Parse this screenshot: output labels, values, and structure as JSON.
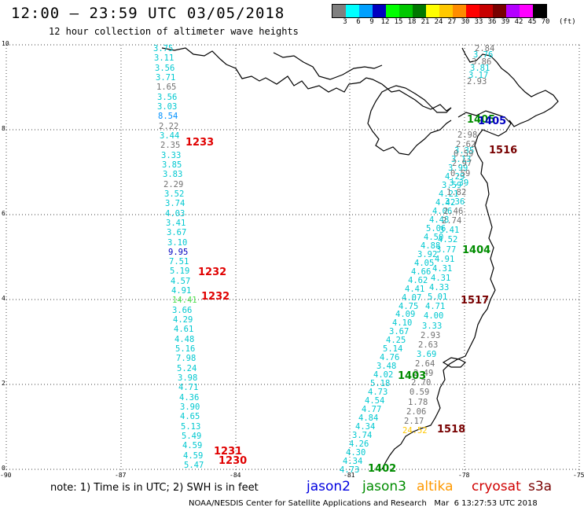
{
  "header": {
    "title": "12:00 – 23:59 UTC 03/05/2018",
    "subtitle": "12 hour collection of altimeter wave heights"
  },
  "colorbar": {
    "unit": "(ft)",
    "labels": [
      "3",
      "6",
      "9",
      "12",
      "15",
      "18",
      "21",
      "24",
      "27",
      "30",
      "33",
      "36",
      "39",
      "42",
      "45",
      "70"
    ],
    "colors": [
      "#808080",
      "#00ffff",
      "#00a0ff",
      "#0000c0",
      "#00ff00",
      "#00c800",
      "#007800",
      "#ffff00",
      "#ffc800",
      "#ff8c00",
      "#ff0000",
      "#c80000",
      "#780000",
      "#b400ff",
      "#ff00ff",
      "#000000"
    ]
  },
  "axes": {
    "y_ticks": [
      "10",
      "8",
      "6",
      "4",
      "2",
      "0"
    ],
    "x_ticks": [
      "-90",
      "-87",
      "-84",
      "-81",
      "-78",
      "-75"
    ]
  },
  "map": {
    "tracks": [
      {
        "id": "west",
        "values": [
          {
            "v": "3.75",
            "c": "#00c8d0"
          },
          {
            "v": "3.11",
            "c": "#00c8d0"
          },
          {
            "v": "3.56",
            "c": "#00c8d0"
          },
          {
            "v": "3.71",
            "c": "#00c8d0"
          },
          {
            "v": "1.65",
            "c": "#707070"
          },
          {
            "v": "3.56",
            "c": "#00c8d0"
          },
          {
            "v": "3.03",
            "c": "#00c8d0"
          },
          {
            "v": "8.54",
            "c": "#0090ff"
          },
          {
            "v": "2.22",
            "c": "#707070"
          },
          {
            "v": "3.44",
            "c": "#00c8d0"
          },
          {
            "v": "2.35",
            "c": "#707070"
          },
          {
            "v": "3.33",
            "c": "#00c8d0"
          },
          {
            "v": "3.85",
            "c": "#00c8d0"
          },
          {
            "v": "3.83",
            "c": "#00c8d0"
          },
          {
            "v": "2.29",
            "c": "#707070"
          },
          {
            "v": "3.52",
            "c": "#00c8d0"
          },
          {
            "v": "3.74",
            "c": "#00c8d0"
          },
          {
            "v": "4.03",
            "c": "#00c8d0"
          },
          {
            "v": "3.41",
            "c": "#00c8d0"
          },
          {
            "v": "3.67",
            "c": "#00c8d0"
          },
          {
            "v": "3.10",
            "c": "#00c8d0"
          },
          {
            "v": "9.95",
            "c": "#0000c0"
          },
          {
            "v": "7.51",
            "c": "#00c8d0"
          },
          {
            "v": "5.19",
            "c": "#00c8d0"
          },
          {
            "v": "4.57",
            "c": "#00c8d0"
          },
          {
            "v": "4.91",
            "c": "#00c8d0"
          },
          {
            "v": "14.41",
            "c": "#50e050"
          },
          {
            "v": "3.66",
            "c": "#00c8d0"
          },
          {
            "v": "4.29",
            "c": "#00c8d0"
          },
          {
            "v": "4.61",
            "c": "#00c8d0"
          },
          {
            "v": "4.48",
            "c": "#00c8d0"
          },
          {
            "v": "5.16",
            "c": "#00c8d0"
          },
          {
            "v": "7.98",
            "c": "#00c8d0"
          },
          {
            "v": "5.24",
            "c": "#00c8d0"
          },
          {
            "v": "3.98",
            "c": "#00c8d0"
          },
          {
            "v": "4.71",
            "c": "#00c8d0"
          },
          {
            "v": "4.36",
            "c": "#00c8d0"
          },
          {
            "v": "3.90",
            "c": "#00c8d0"
          },
          {
            "v": "4.65",
            "c": "#00c8d0"
          },
          {
            "v": "5.13",
            "c": "#00c8d0"
          },
          {
            "v": "5.49",
            "c": "#00c8d0"
          },
          {
            "v": "4.59",
            "c": "#00c8d0"
          },
          {
            "v": "4.59",
            "c": "#00c8d0"
          },
          {
            "v": "5.47",
            "c": "#00c8d0"
          }
        ]
      },
      {
        "id": "mid",
        "values": [
          {
            "v": "3.35",
            "c": "#00c8d0"
          },
          {
            "v": "3.13",
            "c": "#00c8d0"
          },
          {
            "v": "3.99",
            "c": "#00c8d0"
          },
          {
            "v": "4.29",
            "c": "#00c8d0"
          },
          {
            "v": "3.59",
            "c": "#00c8d0"
          },
          {
            "v": "4.21",
            "c": "#00c8d0"
          },
          {
            "v": "4.42",
            "c": "#00c8d0"
          },
          {
            "v": "4.06",
            "c": "#00c8d0"
          },
          {
            "v": "4.48",
            "c": "#00c8d0"
          },
          {
            "v": "5.06",
            "c": "#00c8d0"
          },
          {
            "v": "4.50",
            "c": "#00c8d0"
          },
          {
            "v": "4.88",
            "c": "#00c8d0"
          },
          {
            "v": "3.92",
            "c": "#00c8d0"
          },
          {
            "v": "4.05",
            "c": "#00c8d0"
          },
          {
            "v": "4.66",
            "c": "#00c8d0"
          },
          {
            "v": "4.62",
            "c": "#00c8d0"
          },
          {
            "v": "4.41",
            "c": "#00c8d0"
          },
          {
            "v": "4.07",
            "c": "#00c8d0"
          },
          {
            "v": "4.75",
            "c": "#00c8d0"
          },
          {
            "v": "4.09",
            "c": "#00c8d0"
          },
          {
            "v": "4.10",
            "c": "#00c8d0"
          },
          {
            "v": "3.67",
            "c": "#00c8d0"
          },
          {
            "v": "4.25",
            "c": "#00c8d0"
          },
          {
            "v": "5.14",
            "c": "#00c8d0"
          },
          {
            "v": "4.76",
            "c": "#00c8d0"
          },
          {
            "v": "3.48",
            "c": "#00c8d0"
          },
          {
            "v": "4.02",
            "c": "#00c8d0"
          },
          {
            "v": "5.18",
            "c": "#00c8d0"
          },
          {
            "v": "4.73",
            "c": "#00c8d0"
          },
          {
            "v": "4.54",
            "c": "#00c8d0"
          },
          {
            "v": "4.77",
            "c": "#00c8d0"
          },
          {
            "v": "4.84",
            "c": "#00c8d0"
          },
          {
            "v": "4.34",
            "c": "#00c8d0"
          },
          {
            "v": "3.74",
            "c": "#00c8d0"
          },
          {
            "v": "4.26",
            "c": "#00c8d0"
          },
          {
            "v": "4.30",
            "c": "#00c8d0"
          },
          {
            "v": "4.34",
            "c": "#00c8d0"
          },
          {
            "v": "4.73",
            "c": "#00c8d0"
          }
        ]
      },
      {
        "id": "east",
        "values": [
          {
            "v": "2.98",
            "c": "#707070"
          },
          {
            "v": "2.62",
            "c": "#707070"
          },
          {
            "v": "0.59",
            "c": "#707070"
          },
          {
            "v": "2.97",
            "c": "#707070"
          },
          {
            "v": "0.59",
            "c": "#707070"
          },
          {
            "v": "3.39",
            "c": "#00c8d0"
          },
          {
            "v": "1.82",
            "c": "#707070"
          },
          {
            "v": "3.36",
            "c": "#00c8d0"
          },
          {
            "v": "2.46",
            "c": "#707070"
          },
          {
            "v": "2.74",
            "c": "#707070"
          },
          {
            "v": "3.41",
            "c": "#00c8d0"
          },
          {
            "v": "4.52",
            "c": "#00c8d0"
          },
          {
            "v": "3.77",
            "c": "#00c8d0"
          },
          {
            "v": "4.91",
            "c": "#00c8d0"
          },
          {
            "v": "4.31",
            "c": "#00c8d0"
          },
          {
            "v": "4.31",
            "c": "#00c8d0"
          },
          {
            "v": "4.33",
            "c": "#00c8d0"
          },
          {
            "v": "5.01",
            "c": "#00c8d0"
          },
          {
            "v": "4.71",
            "c": "#00c8d0"
          },
          {
            "v": "4.00",
            "c": "#00c8d0"
          },
          {
            "v": "3.33",
            "c": "#00c8d0"
          },
          {
            "v": "2.93",
            "c": "#707070"
          },
          {
            "v": "2.63",
            "c": "#707070"
          },
          {
            "v": "3.69",
            "c": "#00c8d0"
          },
          {
            "v": "2.64",
            "c": "#707070"
          },
          {
            "v": "2.49",
            "c": "#707070"
          },
          {
            "v": "2.70",
            "c": "#707070"
          },
          {
            "v": "0.59",
            "c": "#707070"
          },
          {
            "v": "1.78",
            "c": "#707070"
          },
          {
            "v": "2.06",
            "c": "#707070"
          },
          {
            "v": "2.17",
            "c": "#707070"
          },
          {
            "v": "24.52",
            "c": "#ffc800"
          }
        ]
      },
      {
        "id": "north",
        "values": [
          {
            "v": "2.84",
            "c": "#707070"
          },
          {
            "v": "3.76",
            "c": "#00c8d0"
          },
          {
            "v": "3.86",
            "c": "#707070"
          },
          {
            "v": "3.81",
            "c": "#00c8d0"
          },
          {
            "v": "3.17",
            "c": "#00c8d0"
          },
          {
            "v": "2.93",
            "c": "#707070"
          }
        ]
      }
    ],
    "pass_labels": [
      {
        "text": "1233",
        "color": "#e00000"
      },
      {
        "text": "1232",
        "color": "#e00000"
      },
      {
        "text": "1232",
        "color": "#e00000"
      },
      {
        "text": "1231",
        "color": "#e00000"
      },
      {
        "text": "1230",
        "color": "#e00000"
      },
      {
        "text": "1405",
        "color": "#008c00"
      },
      {
        "text": "1405",
        "color": "#0000c0"
      },
      {
        "text": "1516",
        "color": "#780000"
      },
      {
        "text": "1404",
        "color": "#008c00"
      },
      {
        "text": "1517",
        "color": "#780000"
      },
      {
        "text": "1403",
        "color": "#008c00"
      },
      {
        "text": "1518",
        "color": "#780000"
      },
      {
        "text": "1402",
        "color": "#008c00"
      }
    ]
  },
  "note": "note: 1) Time is in UTC; 2) SWH is in feet",
  "legend": [
    {
      "text": "jason2",
      "color": "#0000e0"
    },
    {
      "text": "jason3",
      "color": "#008c00"
    },
    {
      "text": "altika",
      "color": "#ff9900"
    },
    {
      "text": "cryosat",
      "color": "#d00000"
    },
    {
      "text": "s3a",
      "color": "#780000"
    }
  ],
  "footer": "NOAA/NESDIS Center for Satellite Applications and Research   Mar  6 13:27:53 UTC 2018"
}
